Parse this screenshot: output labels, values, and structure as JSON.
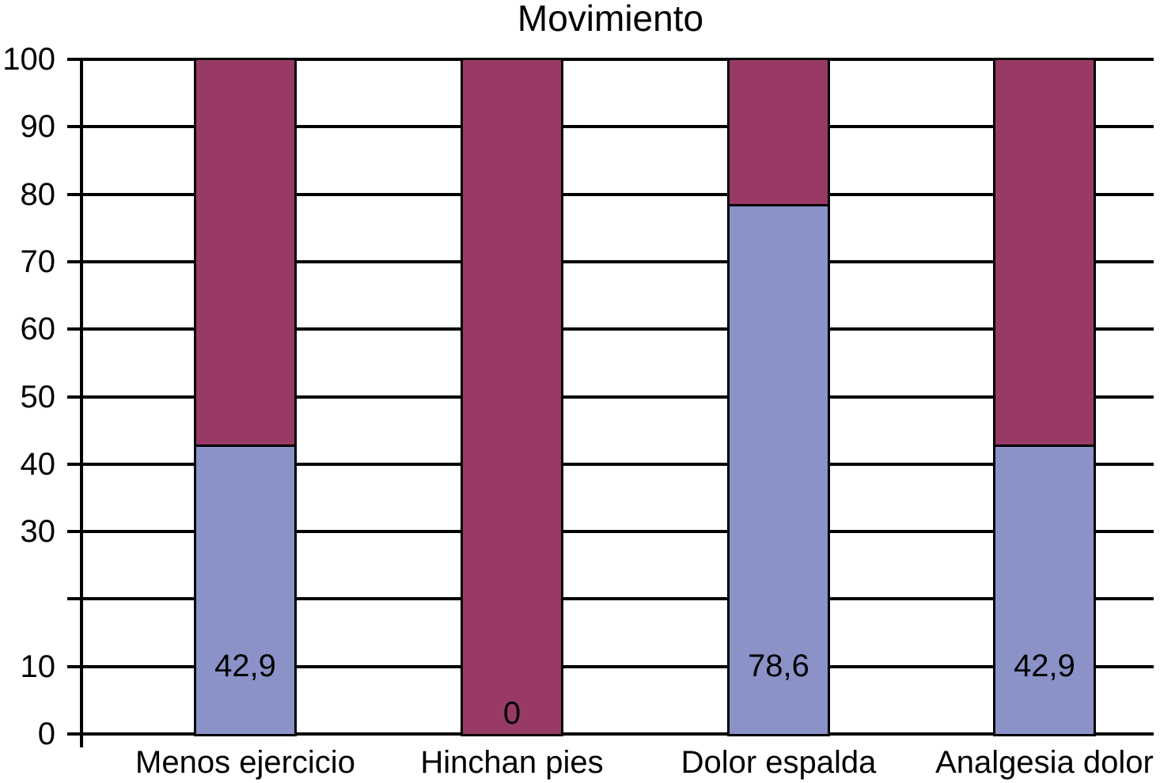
{
  "title": "Movimiento",
  "colors": {
    "bottom_segment": "#8A92C8",
    "top_segment": "#993A66",
    "axis": "#000000",
    "text": "#000000",
    "background": "#FFFFFF"
  },
  "chart_data": {
    "type": "bar",
    "stacked": true,
    "title": "Movimiento",
    "categories": [
      "Menos ejercicio",
      "Hinchan pies",
      "Dolor espalda",
      "Analgesia dolor"
    ],
    "series": [
      {
        "name": "bottom",
        "color": "#8A92C8",
        "values": [
          42.9,
          0,
          78.6,
          42.9
        ],
        "data_labels": [
          "42,9",
          "0",
          "78,6",
          "42,9"
        ]
      },
      {
        "name": "top",
        "color": "#993A66",
        "values": [
          57.1,
          100,
          21.4,
          57.1
        ],
        "data_labels": [
          "",
          "",
          "",
          ""
        ]
      }
    ],
    "ylabel": "",
    "xlabel": "",
    "ylim": [
      0,
      100
    ],
    "ytick_interval": 10,
    "ytick_labels": [
      "0",
      "10",
      "",
      "30",
      "40",
      "50",
      "60",
      "70",
      "80",
      "90",
      "100"
    ],
    "grid": true,
    "legend": false
  }
}
